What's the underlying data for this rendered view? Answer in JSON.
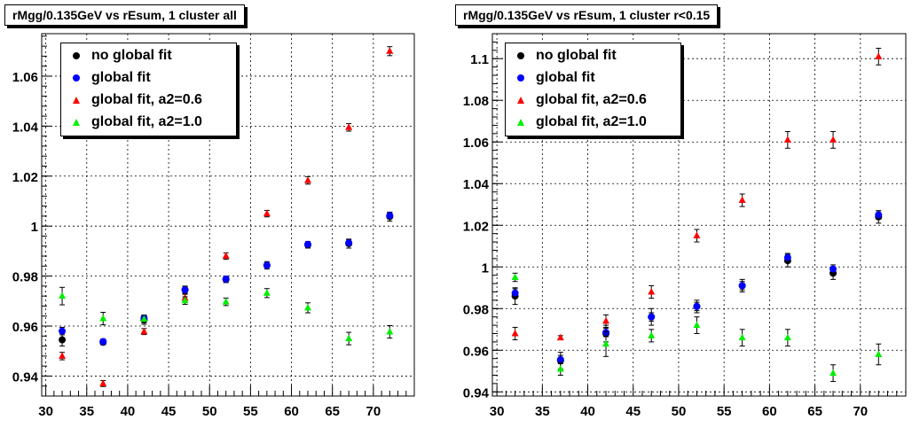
{
  "chart_data": [
    {
      "type": "scatter",
      "title": "rMgg/0.135GeV vs rEsum, 1 cluster all",
      "xlim": [
        29.5,
        75
      ],
      "ylim": [
        0.932,
        1.077
      ],
      "xticks": [
        30,
        35,
        40,
        45,
        50,
        55,
        60,
        65,
        70
      ],
      "xtick_labels": [
        "30",
        "35",
        "40",
        "45",
        "50",
        "55",
        "60",
        "65",
        "70"
      ],
      "yticks": [
        0.94,
        0.96,
        0.98,
        1.0,
        1.02,
        1.04,
        1.06
      ],
      "ytick_labels": [
        "0.94",
        "0.96",
        "0.98",
        "1",
        "1.02",
        "1.04",
        "1.06"
      ],
      "grid": true,
      "legend_position": "top-left",
      "series": [
        {
          "name": "no global fit",
          "marker": "circle",
          "color": "#000000",
          "x": [
            32,
            37,
            42,
            47,
            52,
            57,
            62,
            67,
            72
          ],
          "y": [
            0.9545,
            0.9535,
            0.9625,
            0.9745,
            0.9787,
            0.9843,
            0.9925,
            0.993,
            1.0038
          ],
          "err": [
            0.0025,
            0.001,
            0.0018,
            0.0015,
            0.0013,
            0.0015,
            0.0013,
            0.0018,
            0.0018
          ]
        },
        {
          "name": "global fit",
          "marker": "circle",
          "color": "#0000ff",
          "x": [
            32,
            37,
            42,
            47,
            52,
            57,
            62,
            67,
            72
          ],
          "y": [
            0.958,
            0.9538,
            0.9632,
            0.9745,
            0.9788,
            0.9843,
            0.9927,
            0.9933,
            1.0042
          ],
          "err": [
            0.0015,
            0.001,
            0.0012,
            0.0012,
            0.001,
            0.001,
            0.001,
            0.0012,
            0.0012
          ]
        },
        {
          "name": "global fit, a2=0.6",
          "marker": "triangle",
          "color": "#ff0000",
          "x": [
            32,
            37,
            42,
            47,
            52,
            57,
            62,
            67,
            72
          ],
          "y": [
            0.948,
            0.937,
            0.9578,
            0.9712,
            0.988,
            1.005,
            1.0183,
            1.0395,
            1.07
          ],
          "err": [
            0.0015,
            0.0012,
            0.0012,
            0.0015,
            0.0013,
            0.0013,
            0.0015,
            0.0015,
            0.0018
          ]
        },
        {
          "name": "global fit, a2=1.0",
          "marker": "triangle",
          "color": "#00ee00",
          "x": [
            32,
            37,
            42,
            47,
            52,
            57,
            62,
            67,
            72
          ],
          "y": [
            0.972,
            0.963,
            0.9628,
            0.9702,
            0.9697,
            0.9732,
            0.9673,
            0.955,
            0.9577
          ],
          "err": [
            0.0035,
            0.0025,
            0.0015,
            0.0015,
            0.0015,
            0.0018,
            0.002,
            0.0025,
            0.0025
          ]
        }
      ]
    },
    {
      "type": "scatter",
      "title": "rMgg/0.135GeV vs rEsum, 1 cluster r<0.15",
      "xlim": [
        29.5,
        75
      ],
      "ylim": [
        0.938,
        1.112
      ],
      "xticks": [
        30,
        35,
        40,
        45,
        50,
        55,
        60,
        65,
        70
      ],
      "xtick_labels": [
        "30",
        "35",
        "40",
        "45",
        "50",
        "55",
        "60",
        "65",
        "70"
      ],
      "yticks": [
        0.94,
        0.96,
        0.98,
        1.0,
        1.02,
        1.04,
        1.06,
        1.08,
        1.1
      ],
      "ytick_labels": [
        "0.94",
        "0.96",
        "0.98",
        "1",
        "1.02",
        "1.04",
        "1.06",
        "1.08",
        "1.1"
      ],
      "grid": true,
      "legend_position": "top-left",
      "series": [
        {
          "name": "no global fit",
          "marker": "circle",
          "color": "#000000",
          "x": [
            32,
            37,
            42,
            47,
            52,
            57,
            62,
            67,
            72
          ],
          "y": [
            0.986,
            0.955,
            0.968,
            0.976,
            0.981,
            0.991,
            1.003,
            0.997,
            1.024
          ],
          "err": [
            0.004,
            0.004,
            0.004,
            0.004,
            0.003,
            0.003,
            0.003,
            0.003,
            0.003
          ]
        },
        {
          "name": "global fit",
          "marker": "circle",
          "color": "#0000ff",
          "x": [
            32,
            37,
            42,
            47,
            52,
            57,
            62,
            67,
            72
          ],
          "y": [
            0.9875,
            0.9555,
            0.9685,
            0.976,
            0.981,
            0.991,
            1.0045,
            0.999,
            1.025
          ],
          "err": [
            0.002,
            0.002,
            0.002,
            0.002,
            0.002,
            0.002,
            0.002,
            0.002,
            0.002
          ]
        },
        {
          "name": "global fit, a2=0.6",
          "marker": "triangle",
          "color": "#ff0000",
          "x": [
            32,
            37,
            42,
            47,
            52,
            57,
            62,
            67,
            72
          ],
          "y": [
            0.968,
            0.966,
            0.974,
            0.988,
            1.015,
            1.032,
            1.061,
            1.061,
            1.101
          ],
          "err": [
            0.003,
            0.001,
            0.003,
            0.003,
            0.003,
            0.003,
            0.004,
            0.004,
            0.004
          ]
        },
        {
          "name": "global fit, a2=1.0",
          "marker": "triangle",
          "color": "#00ee00",
          "x": [
            32,
            37,
            42,
            47,
            52,
            57,
            62,
            67,
            72
          ],
          "y": [
            0.995,
            0.951,
            0.963,
            0.967,
            0.972,
            0.966,
            0.966,
            0.949,
            0.958
          ],
          "err": [
            0.002,
            0.003,
            0.006,
            0.003,
            0.004,
            0.004,
            0.004,
            0.004,
            0.005
          ]
        }
      ]
    }
  ]
}
